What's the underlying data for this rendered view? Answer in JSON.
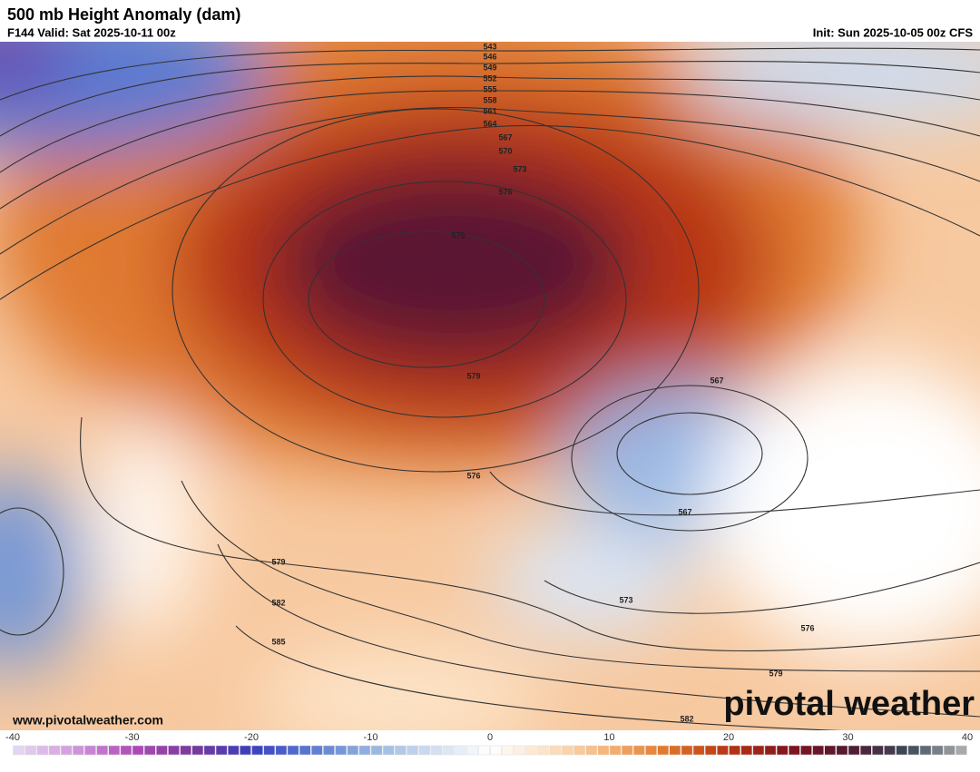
{
  "header": {
    "title": "500 mb Height Anomaly (dam)",
    "valid": "F144 Valid: Sat 2025-10-11 00z",
    "init": "Init: Sun 2025-10-05 00z CFS"
  },
  "contour_labels": [
    543,
    546,
    549,
    552,
    555,
    558,
    561,
    564,
    567,
    570,
    573,
    576,
    579,
    579,
    567,
    576,
    567,
    573,
    576,
    579,
    582,
    579,
    582,
    585
  ],
  "colorbar": {
    "lim": [
      -40,
      40
    ],
    "ticks": [
      -40,
      -30,
      -20,
      -10,
      0,
      10,
      20,
      30,
      40
    ],
    "colors": [
      "#e6dcf2",
      "#d49ae0",
      "#b04cb8",
      "#7a3a9a",
      "#3a3ec0",
      "#5a7ad2",
      "#96b4e2",
      "#cddcf0",
      "#ffffff",
      "#fde0c2",
      "#f6b272",
      "#e27426",
      "#b83414",
      "#82141e",
      "#521832",
      "#3c4a58",
      "#b4b4b4"
    ]
  },
  "footer": {
    "url": "www.pivotalweather.com",
    "brand": "pivotal weather"
  }
}
